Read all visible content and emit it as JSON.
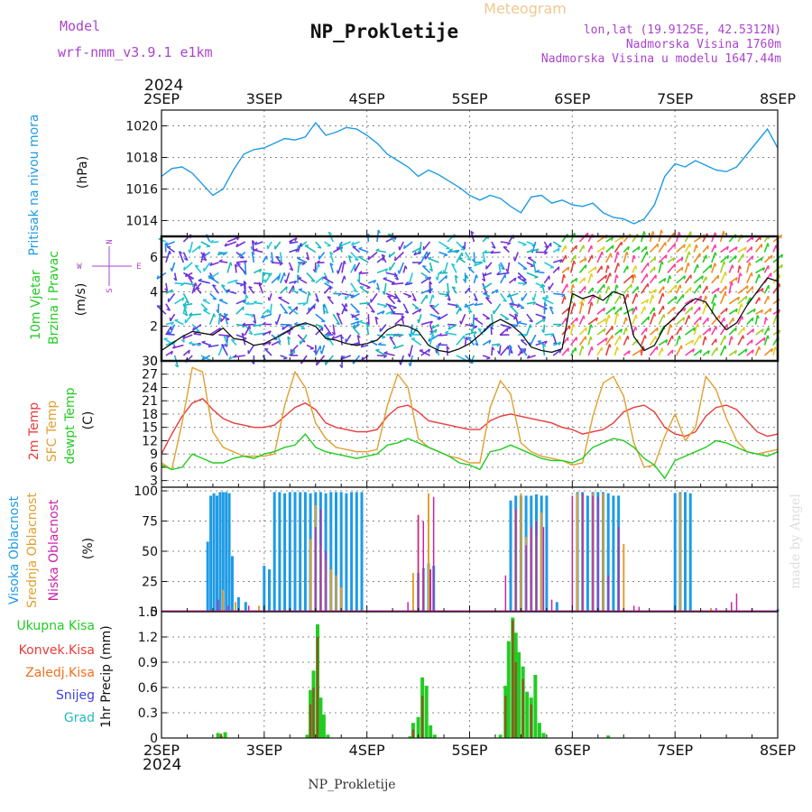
{
  "header": {
    "model_label": "Model",
    "model_name": "wrf-nmm_v3.9.1 e1km",
    "title": "NP_Prokletije",
    "subtitle": "Meteogram",
    "lonlat": "lon,lat (19.9125E, 42.5312N)",
    "elevation": "Nadmorska Visina 1760m",
    "model_elevation": "Nadmorska Visina u modelu 1647.44m"
  },
  "footer": {
    "station": "NP_Prokletije",
    "credit": "made by Angel"
  },
  "colors": {
    "pressure": "#1e9be6",
    "wind_label": "#22cc22",
    "temp2m": "#e83b3b",
    "sfc": "#e0a030",
    "dewpt": "#22cc22",
    "high_cloud": "#1e9be6",
    "mid_cloud": "#e0a030",
    "low_cloud": "#cc22aa",
    "total_precip": "#22cc22",
    "conv_precip": "#e83b3b",
    "frozen": "#f07020",
    "snow": "#4040dd",
    "grad": "#22bbbb",
    "compass": "#aa44cc",
    "header_purple": "#aa44cc"
  },
  "time_axis": {
    "year": "2024",
    "labels": [
      "2SEP",
      "3SEP",
      "4SEP",
      "5SEP",
      "6SEP",
      "7SEP",
      "8SEP"
    ]
  },
  "compass": {
    "n": "N",
    "s": "S",
    "e": "E",
    "w": "W"
  },
  "chart_data": [
    {
      "type": "line",
      "ylabel_rotated": "Pritisak na nivou mora",
      "unit": "(hPa)",
      "yticks": [
        1014,
        1016,
        1018,
        1020
      ],
      "ylim": [
        1013,
        1021
      ],
      "x_days": [
        0,
        0.1,
        0.2,
        0.3,
        0.4,
        0.5,
        0.6,
        0.7,
        0.8,
        0.9,
        1.0,
        1.1,
        1.2,
        1.3,
        1.4,
        1.5,
        1.6,
        1.7,
        1.8,
        1.9,
        2.0,
        2.1,
        2.2,
        2.3,
        2.4,
        2.5,
        2.6,
        2.7,
        2.8,
        2.9,
        3.0,
        3.1,
        3.2,
        3.3,
        3.4,
        3.5,
        3.6,
        3.7,
        3.8,
        3.9,
        4.0,
        4.1,
        4.2,
        4.3,
        4.4,
        4.5,
        4.6,
        4.7,
        4.8,
        4.9,
        5.0,
        5.1,
        5.2,
        5.3,
        5.4,
        5.5,
        5.6,
        5.7,
        5.8,
        5.9,
        6.0
      ],
      "series": [
        {
          "values": [
            1016.8,
            1017.3,
            1017.4,
            1017.0,
            1016.3,
            1015.6,
            1016.0,
            1017.2,
            1018.2,
            1018.5,
            1018.6,
            1018.9,
            1019.2,
            1019.1,
            1019.3,
            1020.2,
            1019.4,
            1019.6,
            1019.9,
            1019.8,
            1019.4,
            1018.9,
            1018.2,
            1017.8,
            1017.4,
            1016.8,
            1017.2,
            1016.9,
            1016.5,
            1016.1,
            1015.6,
            1015.3,
            1015.6,
            1015.4,
            1014.9,
            1014.5,
            1015.5,
            1015.6,
            1015.1,
            1015.3,
            1015.0,
            1014.9,
            1015.1,
            1014.5,
            1014.2,
            1014.1,
            1013.8,
            1014.1,
            1015.0,
            1016.8,
            1017.6,
            1017.4,
            1017.8,
            1017.5,
            1017.2,
            1017.1,
            1017.4,
            1018.2,
            1019.0,
            1019.8,
            1018.6
          ]
        }
      ]
    },
    {
      "type": "line",
      "ylabel_rotated": [
        "10m Vjetar",
        "Brzina i Pravac"
      ],
      "unit": "(m/s)",
      "yticks": [
        0,
        2,
        4,
        6
      ],
      "ylim": [
        0,
        7.2
      ],
      "x_days": [
        0,
        0.1,
        0.2,
        0.3,
        0.4,
        0.5,
        0.6,
        0.7,
        0.8,
        0.9,
        1.0,
        1.1,
        1.2,
        1.3,
        1.4,
        1.5,
        1.6,
        1.7,
        1.8,
        1.9,
        2.0,
        2.1,
        2.2,
        2.3,
        2.4,
        2.5,
        2.6,
        2.7,
        2.8,
        2.9,
        3.0,
        3.1,
        3.2,
        3.3,
        3.4,
        3.5,
        3.6,
        3.7,
        3.8,
        3.9,
        4.0,
        4.1,
        4.2,
        4.3,
        4.4,
        4.5,
        4.6,
        4.7,
        4.8,
        4.9,
        5.0,
        5.1,
        5.2,
        5.3,
        5.4,
        5.5,
        5.6,
        5.7,
        5.8,
        5.9,
        6.0
      ],
      "series": [
        {
          "values": [
            0.6,
            1.0,
            1.4,
            1.7,
            1.6,
            1.5,
            1.9,
            1.3,
            1.2,
            0.9,
            1.0,
            1.3,
            1.6,
            2.0,
            2.2,
            2.0,
            1.3,
            1.2,
            1.0,
            0.9,
            1.0,
            1.2,
            1.8,
            2.1,
            2.0,
            1.7,
            0.9,
            0.6,
            0.5,
            0.7,
            1.0,
            1.5,
            2.1,
            2.4,
            2.1,
            1.6,
            0.8,
            0.6,
            0.5,
            0.7,
            3.9,
            3.6,
            3.8,
            3.5,
            4.0,
            3.8,
            1.4,
            0.6,
            0.9,
            2.0,
            2.5,
            3.2,
            3.6,
            3.4,
            2.5,
            1.8,
            2.2,
            3.2,
            4.0,
            4.8,
            4.6
          ]
        }
      ]
    },
    {
      "type": "line",
      "ylabel_rotated": [
        "2m Temp",
        "SFC Temp",
        "dewpt Temp"
      ],
      "unit": "(C)",
      "yticks": [
        3,
        6,
        9,
        12,
        15,
        18,
        21,
        24,
        27,
        30
      ],
      "ylim": [
        1.5,
        30
      ],
      "x_days": [
        0,
        0.1,
        0.2,
        0.3,
        0.4,
        0.5,
        0.6,
        0.7,
        0.8,
        0.9,
        1.0,
        1.1,
        1.2,
        1.3,
        1.4,
        1.5,
        1.6,
        1.7,
        1.8,
        1.9,
        2.0,
        2.1,
        2.2,
        2.3,
        2.4,
        2.5,
        2.6,
        2.7,
        2.8,
        2.9,
        3.0,
        3.1,
        3.2,
        3.3,
        3.4,
        3.5,
        3.6,
        3.7,
        3.8,
        3.9,
        4.0,
        4.1,
        4.2,
        4.3,
        4.4,
        4.5,
        4.6,
        4.7,
        4.8,
        4.9,
        5.0,
        5.1,
        5.2,
        5.3,
        5.4,
        5.5,
        5.6,
        5.7,
        5.8,
        5.9,
        6.0
      ],
      "series": [
        {
          "values": [
            9.0,
            13.5,
            17.5,
            20.5,
            21.5,
            19.0,
            17.0,
            16.0,
            15.5,
            15.0,
            15.0,
            15.5,
            17.5,
            19.5,
            20.5,
            19.0,
            16.0,
            15.0,
            14.5,
            14.0,
            14.0,
            14.5,
            17.5,
            19.5,
            20.0,
            18.5,
            16.5,
            16.0,
            15.5,
            15.0,
            14.5,
            14.5,
            16.5,
            17.5,
            18.0,
            17.5,
            17.0,
            16.5,
            16.0,
            15.0,
            14.5,
            13.5,
            14.0,
            14.5,
            16.0,
            18.5,
            19.5,
            20.0,
            18.5,
            15.0,
            13.5,
            13.0,
            14.0,
            17.5,
            19.5,
            20.0,
            19.0,
            16.5,
            14.0,
            13.0,
            13.5
          ]
        },
        {
          "values": [
            7.0,
            5.5,
            16.0,
            28.5,
            27.5,
            14.0,
            10.5,
            9.5,
            8.5,
            8.5,
            8.5,
            9.0,
            20.0,
            27.5,
            24.0,
            16.0,
            12.5,
            10.5,
            10.0,
            9.5,
            9.5,
            10.0,
            20.0,
            27.0,
            24.0,
            12.5,
            10.5,
            9.5,
            8.5,
            8.0,
            7.0,
            7.0,
            19.5,
            25.5,
            22.5,
            11.5,
            9.5,
            8.5,
            8.0,
            7.5,
            6.5,
            7.0,
            17.5,
            25.0,
            26.5,
            22.0,
            11.5,
            6.0,
            6.5,
            13.0,
            18.0,
            12.0,
            15.0,
            26.5,
            23.5,
            17.0,
            12.0,
            9.5,
            9.0,
            9.5,
            10.0
          ]
        },
        {
          "values": [
            6.5,
            5.5,
            6.0,
            9.0,
            8.0,
            7.0,
            7.0,
            8.0,
            8.5,
            8.0,
            9.0,
            9.5,
            10.5,
            11.0,
            13.5,
            10.5,
            9.5,
            9.0,
            8.5,
            8.0,
            8.5,
            9.0,
            11.0,
            11.5,
            12.5,
            11.5,
            10.5,
            9.5,
            8.5,
            7.0,
            6.5,
            5.5,
            9.5,
            10.0,
            11.0,
            10.0,
            9.0,
            8.0,
            7.5,
            7.5,
            7.0,
            8.0,
            10.5,
            11.5,
            12.5,
            12.0,
            10.5,
            8.0,
            6.5,
            3.5,
            7.5,
            8.5,
            9.5,
            10.5,
            12.0,
            11.5,
            10.5,
            9.5,
            9.0,
            8.5,
            9.5
          ]
        }
      ]
    },
    {
      "type": "bar",
      "ylabel_rotated": [
        "Visoka Oblacnost",
        "Srednja Oblacnost",
        "Niska Oblacnost"
      ],
      "unit": "(%)",
      "yticks": [
        0,
        25,
        50,
        75,
        100
      ],
      "ylim": [
        0,
        103
      ],
      "series": [
        {
          "x_days": [
            0.45,
            0.48,
            0.51,
            0.54,
            0.57,
            0.6,
            0.63,
            0.66,
            0.69,
            0.75,
            0.82,
            1.0,
            1.05,
            1.1,
            1.15,
            1.2,
            1.25,
            1.3,
            1.35,
            1.4,
            1.45,
            1.5,
            1.55,
            1.6,
            1.65,
            1.7,
            1.75,
            1.8,
            1.85,
            1.9,
            1.95,
            2.5,
            2.55,
            2.6,
            2.65,
            3.4,
            3.45,
            3.5,
            3.55,
            3.6,
            3.65,
            3.7,
            3.75,
            3.85,
            4.05,
            4.1,
            4.15,
            4.2,
            4.25,
            4.3,
            4.35,
            4.4,
            4.45,
            5.0,
            5.05,
            5.1,
            5.15,
            6.0
          ],
          "values": [
            58,
            96,
            98,
            96,
            99,
            99,
            99,
            98,
            46,
            12,
            8,
            38,
            35,
            99,
            99,
            98,
            99,
            99,
            99,
            99,
            98,
            99,
            99,
            98,
            99,
            99,
            99,
            98,
            99,
            99,
            99,
            32,
            36,
            40,
            38,
            92,
            96,
            96,
            96,
            96,
            97,
            96,
            96,
            8,
            99,
            99,
            96,
            99,
            99,
            99,
            98,
            96,
            96,
            98,
            99,
            99,
            98,
            2
          ]
        },
        {
          "x_days": [
            0.6,
            0.72,
            0.95,
            1.45,
            1.5,
            1.55,
            1.6,
            1.65,
            1.7,
            1.75,
            2.45,
            2.5,
            2.55,
            2.6,
            3.45,
            3.5,
            3.55,
            3.6,
            3.65,
            3.7,
            4.05,
            4.1,
            4.2,
            4.3,
            4.5,
            5.05,
            5.35
          ],
          "values": [
            18,
            8,
            5,
            60,
            88,
            55,
            42,
            35,
            30,
            20,
            32,
            80,
            35,
            98,
            85,
            98,
            62,
            70,
            62,
            82,
            98,
            96,
            98,
            98,
            56,
            98,
            3
          ]
        },
        {
          "x_days": [
            0.55,
            0.65,
            0.85,
            1.5,
            1.55,
            1.6,
            2.4,
            2.5,
            2.55,
            2.62,
            2.65,
            3.35,
            3.45,
            3.55,
            3.6,
            3.65,
            3.72,
            3.8,
            4.0,
            4.1,
            4.2,
            4.25,
            4.35,
            4.45,
            4.6,
            4.65,
            5.4,
            5.55,
            5.6,
            5.75
          ],
          "values": [
            10,
            5,
            5,
            70,
            85,
            50,
            8,
            80,
            75,
            35,
            95,
            30,
            85,
            55,
            70,
            75,
            70,
            10,
            96,
            98,
            96,
            95,
            30,
            70,
            5,
            4,
            3,
            8,
            15,
            3
          ]
        }
      ]
    },
    {
      "type": "bar",
      "ylabel_rotated": "1hr Precip (mm)",
      "legend": [
        "Ukupna Kisa",
        "Konvek.Kisa",
        "Zaledj.Kisa",
        "Snijeg",
        "Grad"
      ],
      "yticks": [
        0,
        0.3,
        0.6,
        0.9,
        1.2,
        1.5
      ],
      "ylim": [
        0,
        1.5
      ],
      "series": [
        {
          "x_days": [
            0.55,
            0.58,
            0.62,
            1.42,
            1.45,
            1.48,
            1.52,
            1.55,
            1.58,
            1.62,
            2.42,
            2.45,
            2.5,
            2.54,
            2.58,
            2.62,
            2.66,
            3.3,
            3.35,
            3.38,
            3.42,
            3.45,
            3.48,
            3.52,
            3.56,
            3.6,
            3.64,
            3.68,
            3.72,
            4.35
          ],
          "values": [
            0.06,
            0.02,
            0.07,
            0.04,
            0.57,
            0.8,
            1.35,
            0.48,
            0.28,
            0.04,
            0.02,
            0.18,
            0.25,
            0.72,
            0.62,
            0.15,
            0.04,
            0.04,
            0.62,
            1.15,
            1.43,
            1.25,
            1.02,
            0.85,
            0.55,
            0.48,
            0.75,
            0.18,
            0.06,
            0.03
          ]
        },
        {
          "x_days": [
            0.58,
            1.45,
            1.48,
            1.52,
            2.45,
            2.54,
            3.35,
            3.42,
            3.45,
            3.52,
            3.6
          ],
          "values": [
            0.05,
            0.4,
            0.6,
            1.2,
            0.1,
            0.5,
            0.5,
            1.4,
            0.9,
            0.7,
            0.4
          ]
        }
      ]
    }
  ]
}
